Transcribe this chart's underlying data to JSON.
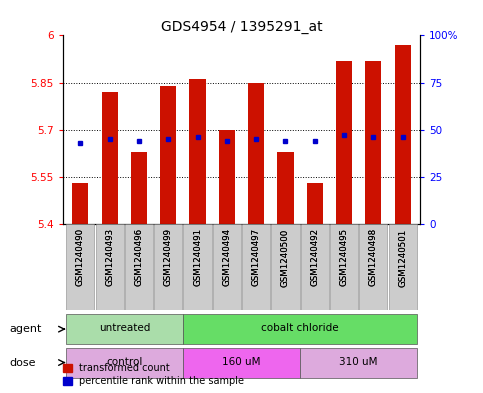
{
  "title": "GDS4954 / 1395291_at",
  "samples": [
    "GSM1240490",
    "GSM1240493",
    "GSM1240496",
    "GSM1240499",
    "GSM1240491",
    "GSM1240494",
    "GSM1240497",
    "GSM1240500",
    "GSM1240492",
    "GSM1240495",
    "GSM1240498",
    "GSM1240501"
  ],
  "transformed_count": [
    5.53,
    5.82,
    5.63,
    5.84,
    5.86,
    5.7,
    5.85,
    5.63,
    5.53,
    5.92,
    5.92,
    5.97
  ],
  "percentile_rank": [
    43,
    45,
    44,
    45,
    46,
    44,
    45,
    44,
    44,
    47,
    46,
    46
  ],
  "ylim_left": [
    5.4,
    6.0
  ],
  "ylim_right": [
    0,
    100
  ],
  "yticks_left": [
    5.4,
    5.55,
    5.7,
    5.85,
    6.0
  ],
  "ytick_labels_left": [
    "5.4",
    "5.55",
    "5.7",
    "5.85",
    "6"
  ],
  "yticks_right": [
    0,
    25,
    50,
    75,
    100
  ],
  "ytick_labels_right": [
    "0",
    "25",
    "50",
    "75",
    "100%"
  ],
  "hlines": [
    5.55,
    5.7,
    5.85
  ],
  "bar_color": "#cc1100",
  "dot_color": "#0000cc",
  "bar_bottom": 5.4,
  "agent_groups": [
    {
      "label": "untreated",
      "start": 0,
      "end": 4,
      "color": "#aaddaa"
    },
    {
      "label": "cobalt chloride",
      "start": 4,
      "end": 12,
      "color": "#66dd66"
    }
  ],
  "dose_groups": [
    {
      "label": "control",
      "start": 0,
      "end": 4,
      "color": "#ddaadd"
    },
    {
      "label": "160 uM",
      "start": 4,
      "end": 8,
      "color": "#ee66ee"
    },
    {
      "label": "310 uM",
      "start": 8,
      "end": 12,
      "color": "#ddaadd"
    }
  ],
  "legend_items": [
    {
      "label": "transformed count",
      "color": "#cc1100"
    },
    {
      "label": "percentile rank within the sample",
      "color": "#0000cc"
    }
  ],
  "agent_label": "agent",
  "dose_label": "dose",
  "title_fontsize": 10,
  "tick_fontsize": 7.5,
  "bar_width": 0.55
}
